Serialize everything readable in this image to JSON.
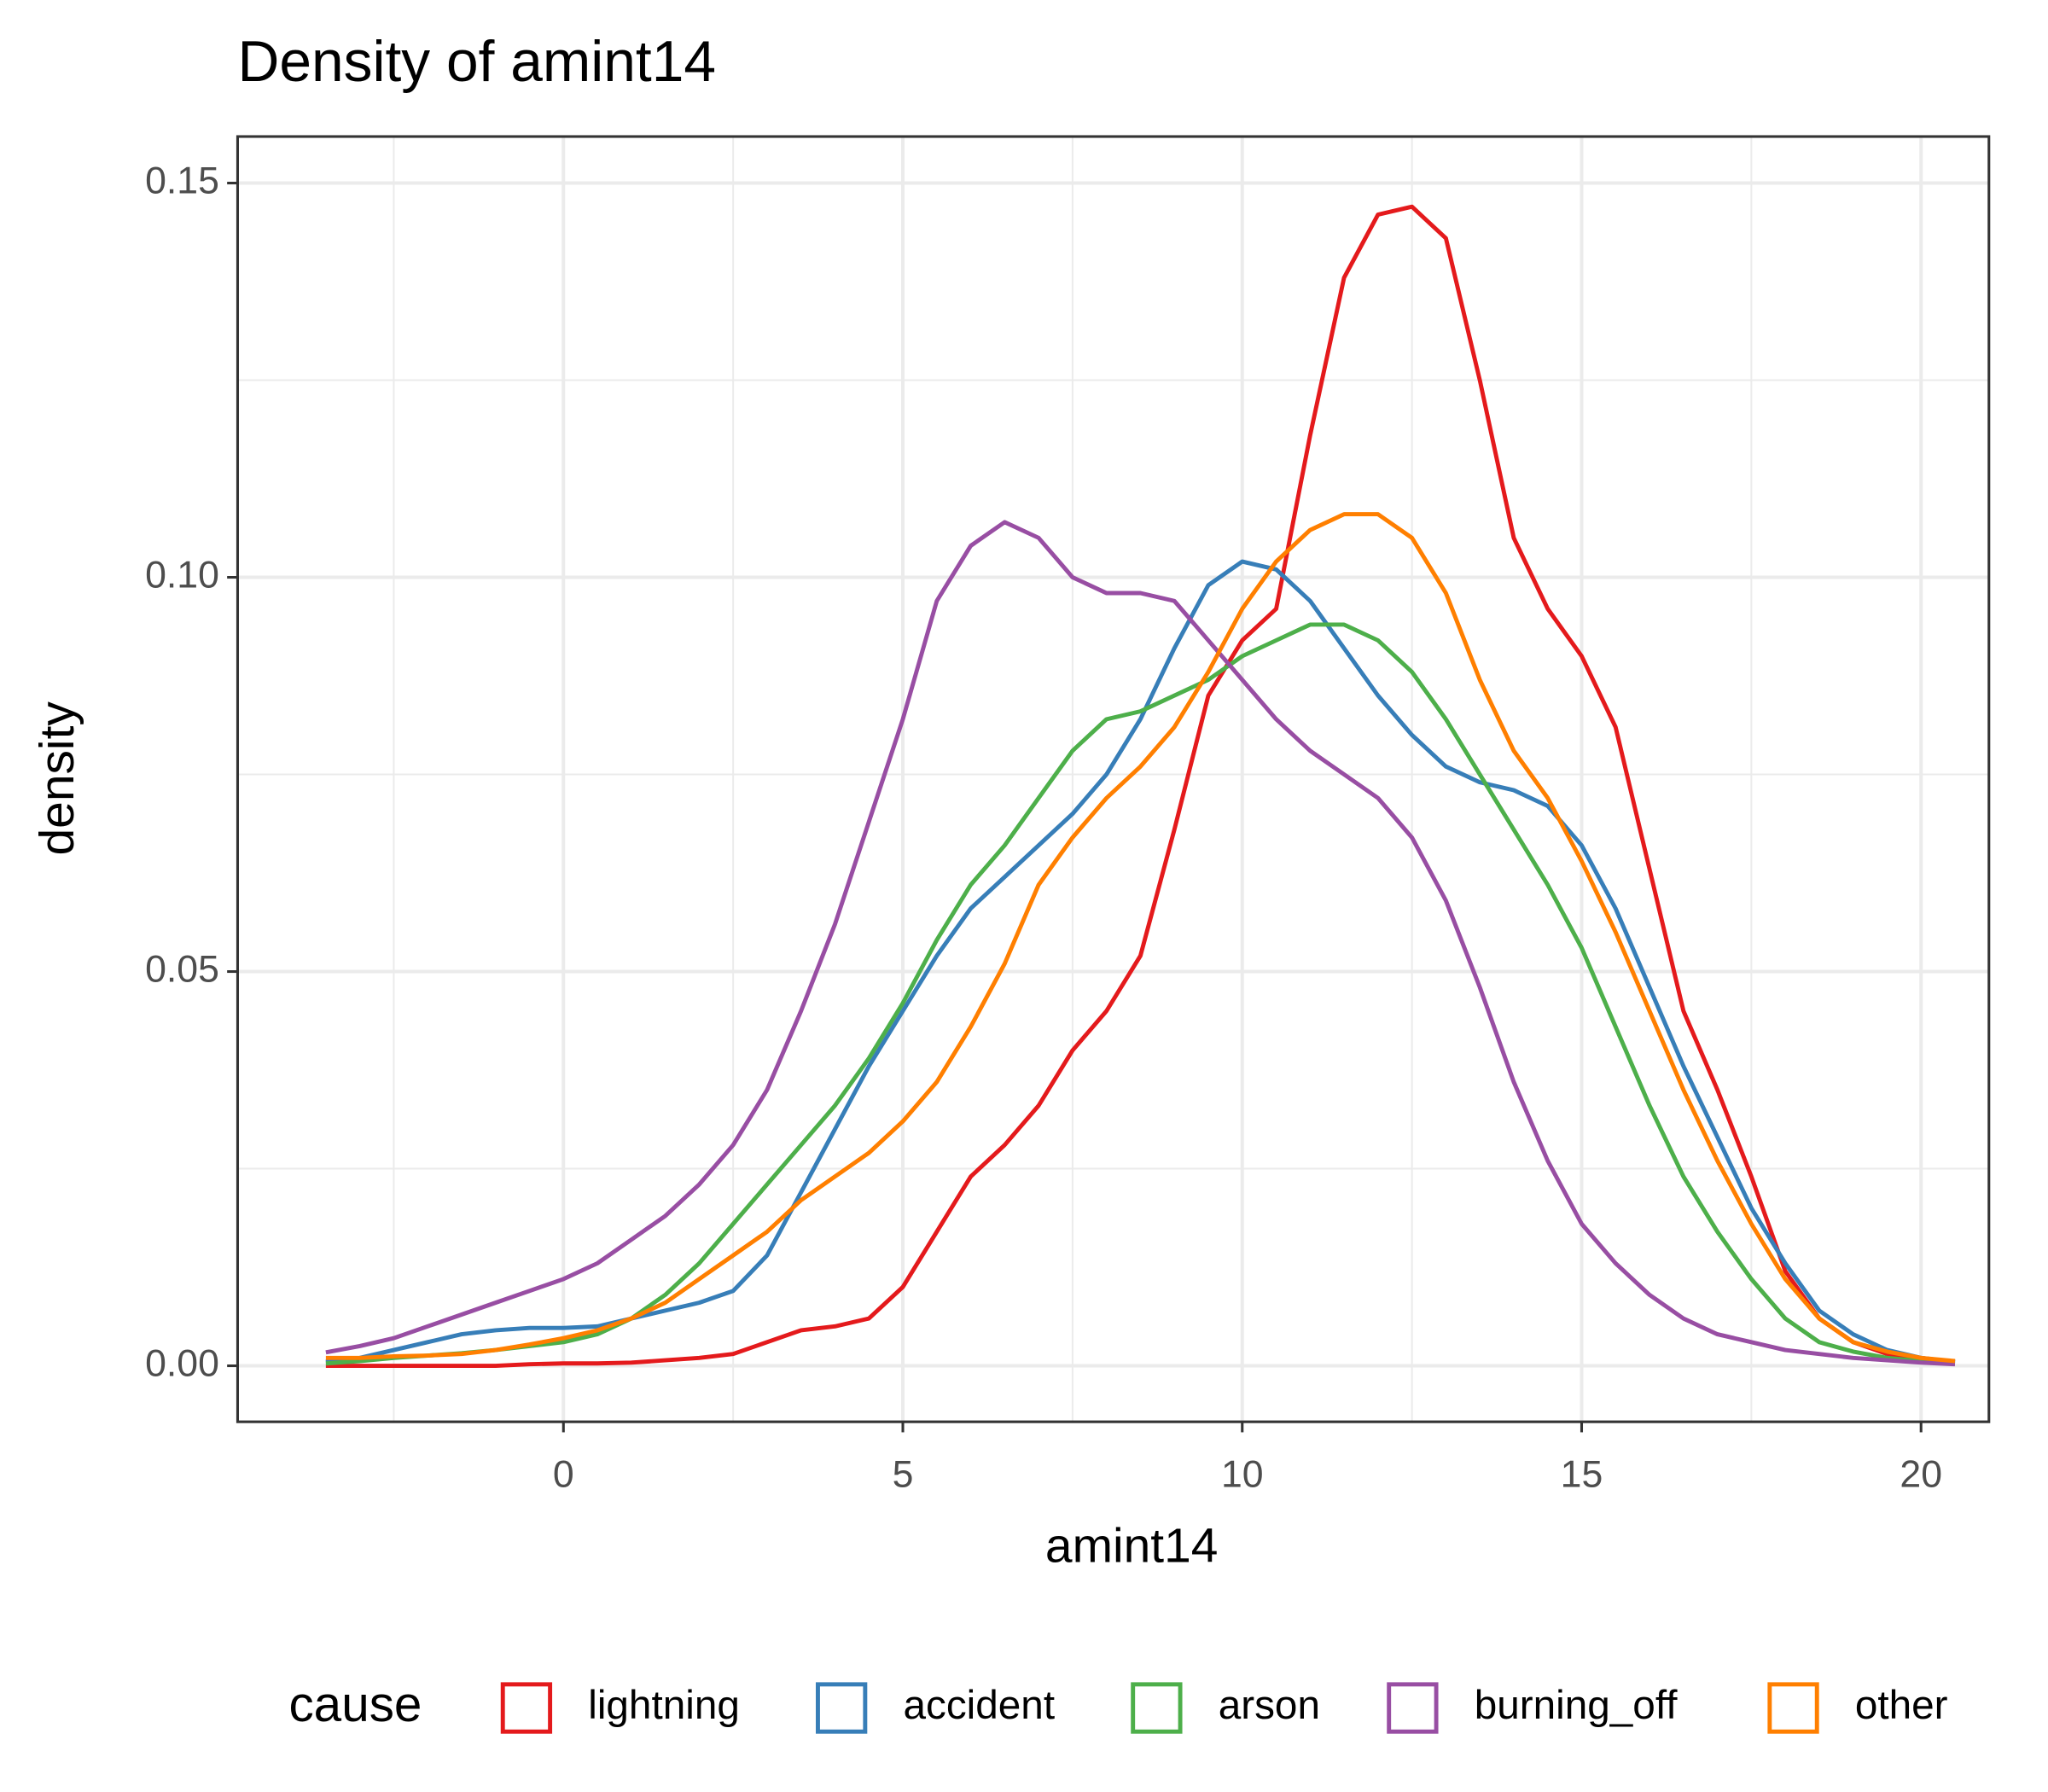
{
  "chart_data": {
    "type": "line",
    "title": "Density of amint14",
    "x_label": "amint14",
    "y_label": "density",
    "legend_title": "cause",
    "legend_position": "bottom",
    "grid": true,
    "xlim": [
      -4.8,
      21.0
    ],
    "ylim": [
      -0.0071,
      0.1559
    ],
    "xticks": [
      0,
      5,
      10,
      15,
      20
    ],
    "yticks": [
      {
        "value": 0,
        "label": "0.00"
      },
      {
        "value": 0.05,
        "label": "0.05"
      },
      {
        "value": 0.1,
        "label": "0.10"
      },
      {
        "value": 0.15,
        "label": "0.15"
      }
    ],
    "minor_xticks": [
      -2.5,
      2.5,
      7.5,
      12.5,
      17.5
    ],
    "minor_yticks": [
      0.025,
      0.075,
      0.125
    ],
    "x": [
      -3.5,
      -3,
      -2.5,
      -2,
      -1.5,
      -1,
      -0.5,
      0,
      0.5,
      1,
      1.5,
      2,
      2.5,
      3,
      3.5,
      4,
      4.5,
      5,
      5.5,
      6,
      6.5,
      7,
      7.5,
      8,
      8.5,
      9,
      9.5,
      10,
      10.5,
      11,
      11.5,
      12,
      12.5,
      13,
      13.5,
      14,
      14.5,
      15,
      15.5,
      16,
      16.5,
      17,
      17.5,
      18,
      18.5,
      19,
      19.5,
      20,
      20.5
    ],
    "series": [
      {
        "name": "lightning",
        "color": "#e41a1c",
        "values": [
          0,
          0,
          0,
          0,
          0,
          0,
          0.0002,
          0.0003,
          0.0003,
          0.0004,
          0.0007,
          0.001,
          0.0015,
          0.003,
          0.0045,
          0.005,
          0.006,
          0.01,
          0.017,
          0.024,
          0.028,
          0.033,
          0.04,
          0.045,
          0.052,
          0.068,
          0.085,
          0.092,
          0.096,
          0.118,
          0.138,
          0.146,
          0.147,
          0.143,
          0.125,
          0.105,
          0.096,
          0.09,
          0.081,
          0.063,
          0.045,
          0.035,
          0.024,
          0.012,
          0.006,
          0.003,
          0.0015,
          0.001,
          0.0005
        ]
      },
      {
        "name": "accident",
        "color": "#377eb8",
        "values": [
          0.0005,
          0.001,
          0.002,
          0.003,
          0.004,
          0.0045,
          0.0048,
          0.0048,
          0.005,
          0.006,
          0.007,
          0.008,
          0.0095,
          0.014,
          0.022,
          0.03,
          0.038,
          0.045,
          0.052,
          0.058,
          0.062,
          0.066,
          0.07,
          0.075,
          0.082,
          0.091,
          0.099,
          0.102,
          0.101,
          0.097,
          0.091,
          0.085,
          0.08,
          0.076,
          0.074,
          0.073,
          0.071,
          0.066,
          0.058,
          0.048,
          0.038,
          0.029,
          0.02,
          0.013,
          0.007,
          0.004,
          0.002,
          0.001,
          0.0005
        ]
      },
      {
        "name": "arson",
        "color": "#4daf4a",
        "values": [
          0.0003,
          0.0006,
          0.001,
          0.0013,
          0.0016,
          0.002,
          0.0025,
          0.003,
          0.004,
          0.006,
          0.009,
          0.013,
          0.018,
          0.023,
          0.028,
          0.033,
          0.039,
          0.046,
          0.054,
          0.061,
          0.066,
          0.072,
          0.078,
          0.082,
          0.083,
          0.085,
          0.087,
          0.09,
          0.092,
          0.094,
          0.094,
          0.092,
          0.088,
          0.082,
          0.075,
          0.068,
          0.061,
          0.053,
          0.043,
          0.033,
          0.024,
          0.017,
          0.011,
          0.006,
          0.003,
          0.0018,
          0.001,
          0.0006,
          0.0003
        ]
      },
      {
        "name": "burning_off",
        "color": "#984ea3",
        "values": [
          0.0017,
          0.0025,
          0.0035,
          0.005,
          0.0065,
          0.008,
          0.0095,
          0.011,
          0.013,
          0.016,
          0.019,
          0.023,
          0.028,
          0.035,
          0.045,
          0.056,
          0.069,
          0.082,
          0.097,
          0.104,
          0.107,
          0.105,
          0.1,
          0.098,
          0.098,
          0.097,
          0.092,
          0.087,
          0.082,
          0.078,
          0.075,
          0.072,
          0.067,
          0.059,
          0.048,
          0.036,
          0.026,
          0.018,
          0.013,
          0.009,
          0.006,
          0.004,
          0.003,
          0.002,
          0.0015,
          0.001,
          0.0007,
          0.0004,
          0.0002
        ]
      },
      {
        "name": "other",
        "color": "#ff7f00",
        "values": [
          0.001,
          0.001,
          0.0012,
          0.0013,
          0.0015,
          0.002,
          0.0027,
          0.0035,
          0.0045,
          0.006,
          0.008,
          0.011,
          0.014,
          0.017,
          0.021,
          0.024,
          0.027,
          0.031,
          0.036,
          0.043,
          0.051,
          0.061,
          0.067,
          0.072,
          0.076,
          0.081,
          0.088,
          0.096,
          0.102,
          0.106,
          0.108,
          0.108,
          0.105,
          0.098,
          0.087,
          0.078,
          0.072,
          0.064,
          0.055,
          0.045,
          0.035,
          0.026,
          0.018,
          0.011,
          0.006,
          0.003,
          0.0018,
          0.001,
          0.0006
        ]
      }
    ]
  }
}
